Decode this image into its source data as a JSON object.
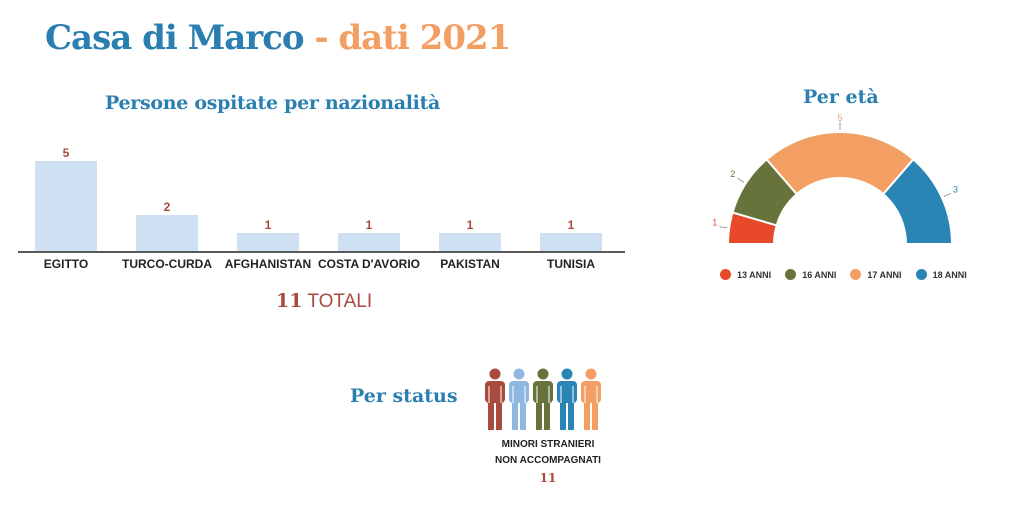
{
  "header": {
    "title_main": "Casa di Marco",
    "title_sep": "-",
    "title_year": "dati 2021"
  },
  "colors": {
    "blue_title": "#2a7fb0",
    "orange": "#f39e63",
    "bar_fill": "#cfe0f3",
    "value_red": "#a84a3e"
  },
  "chart_data": [
    {
      "type": "bar",
      "title": "Persone ospitate per nazionalità",
      "categories": [
        "EGITTO",
        "TURCO-CURDA",
        "AFGHANISTAN",
        "COSTA D'AVORIO",
        "PAKISTAN",
        "TUNISIA"
      ],
      "values": [
        5,
        2,
        1,
        1,
        1,
        1
      ],
      "ylim": [
        0,
        5
      ],
      "grid": false
    },
    {
      "type": "pie",
      "subtype": "half-donut",
      "title": "Per età",
      "categories": [
        "13 ANNI",
        "16 ANNI",
        "17 ANNI",
        "18 ANNI"
      ],
      "values": [
        1,
        2,
        5,
        3
      ],
      "colors": [
        "#e8492a",
        "#66733b",
        "#f39e63",
        "#2a85b4"
      ],
      "legend": "bottom"
    }
  ],
  "totals": {
    "number": "11",
    "label": "TOTALI"
  },
  "status": {
    "title": "Per status",
    "label_line1": "MINORI STRANIERI",
    "label_line2": "NON ACCOMPAGNATI",
    "count": "11",
    "figure_colors": [
      "#a84a3e",
      "#8fb8e0",
      "#66733b",
      "#2a85b4",
      "#f39e63"
    ]
  }
}
